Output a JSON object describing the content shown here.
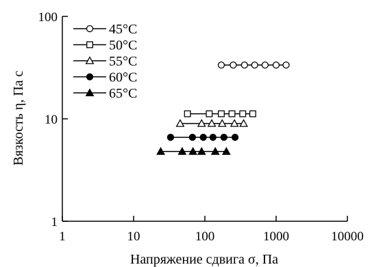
{
  "chart_data": {
    "type": "scatter",
    "xlabel": "Напряжение сдвига σ, Па",
    "ylabel": "Вязкость η, Па с",
    "xscale": "log",
    "yscale": "log",
    "xlim": [
      1,
      10000
    ],
    "ylim": [
      1,
      100
    ],
    "xticks": [
      "1",
      "10",
      "100",
      "1000",
      "10000"
    ],
    "yticks": [
      "1",
      "10",
      "100"
    ],
    "grid": false,
    "legend_position": "top-left",
    "series": [
      {
        "name": "45°C",
        "marker": "circle-open",
        "x": [
          170,
          250,
          360,
          500,
          700,
          1000,
          1380
        ],
        "y": [
          33.5,
          33.5,
          33.5,
          33.5,
          33.5,
          33.5,
          33.5
        ]
      },
      {
        "name": "50°C",
        "marker": "square-open",
        "x": [
          57,
          115,
          170,
          240,
          340,
          470
        ],
        "y": [
          11.2,
          11.2,
          11.2,
          11.2,
          11.2,
          11.2
        ]
      },
      {
        "name": "55°C",
        "marker": "triangle-open",
        "x": [
          45,
          90,
          125,
          175,
          260,
          350
        ],
        "y": [
          9.0,
          9.0,
          9.0,
          9.0,
          9.0,
          9.0
        ]
      },
      {
        "name": "60°C",
        "marker": "circle-filled",
        "x": [
          33,
          67,
          95,
          130,
          185,
          265
        ],
        "y": [
          6.6,
          6.6,
          6.6,
          6.6,
          6.6,
          6.6
        ]
      },
      {
        "name": "65°C",
        "marker": "triangle-filled",
        "x": [
          24,
          48,
          68,
          90,
          140,
          200
        ],
        "y": [
          4.8,
          4.8,
          4.8,
          4.8,
          4.8,
          4.8
        ]
      }
    ]
  }
}
